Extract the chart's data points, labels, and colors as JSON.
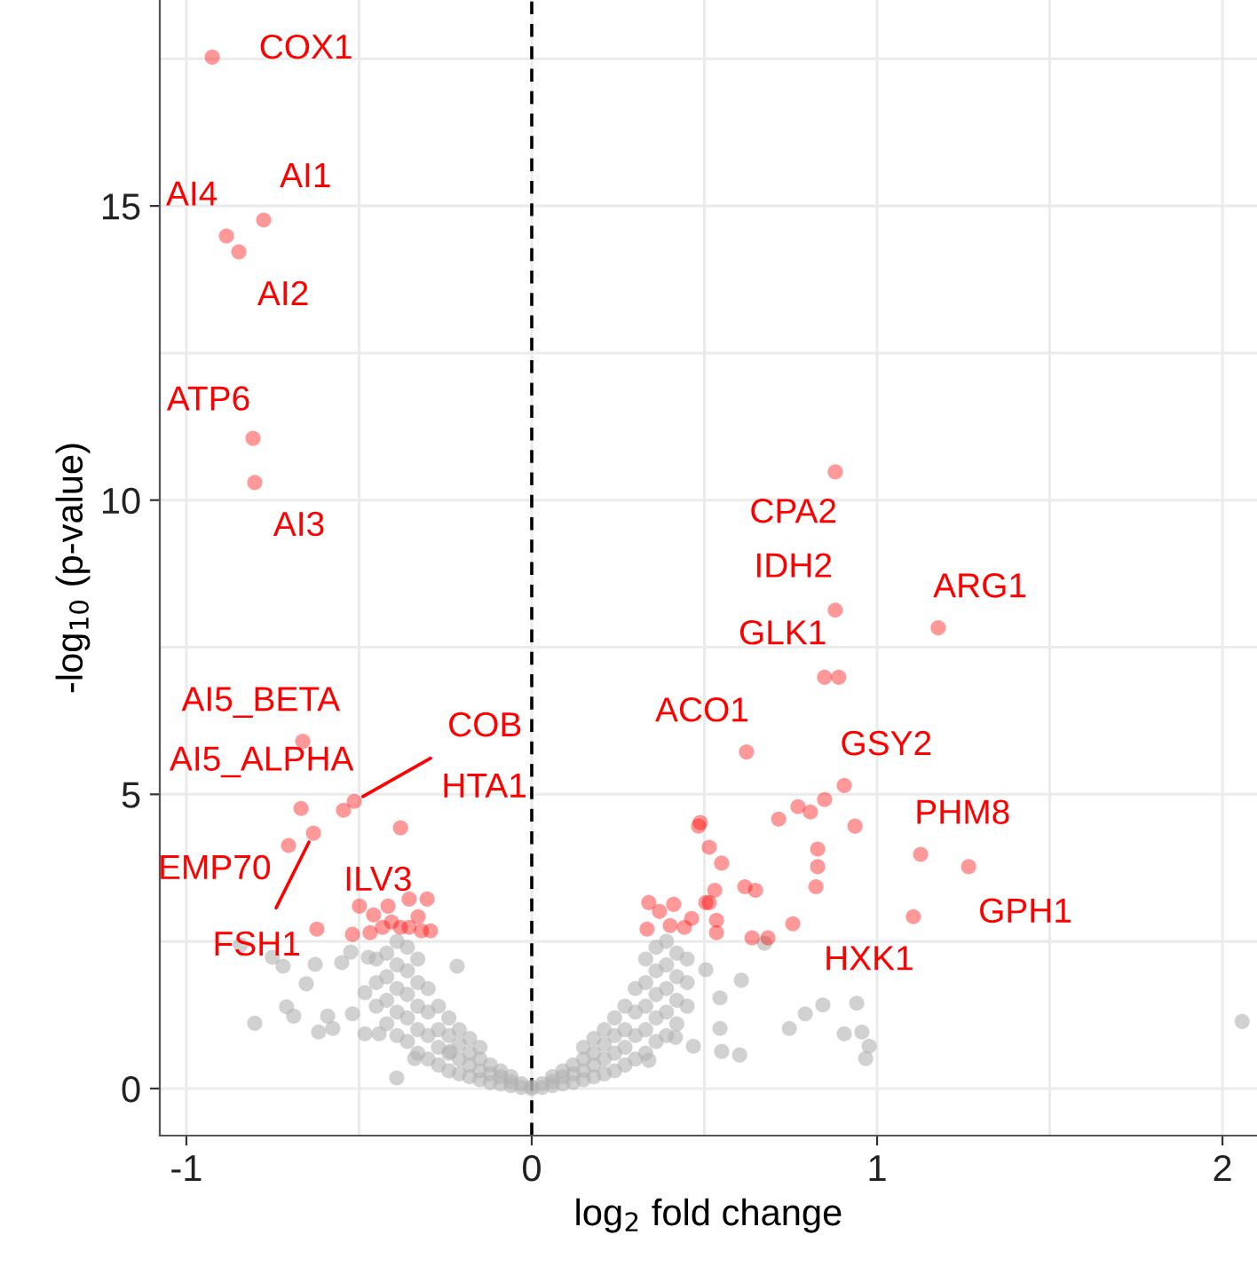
{
  "chart_data": {
    "type": "scatter",
    "xlabel": "log$_{2}$ fold change",
    "ylabel": "-log$_{10}$ (p-value)",
    "xlim": [
      -1.077,
      2.1
    ],
    "ylim": [
      -0.8,
      18.5
    ],
    "xticks": [
      -1,
      {
        "value": -0.5,
        "label": null
      },
      0,
      {
        "value": 0.5,
        "label": null
      },
      1,
      {
        "value": 1.5,
        "label": null
      },
      2
    ],
    "yticks": [
      0,
      {
        "value": 2.5,
        "label": null
      },
      5,
      {
        "value": 7.5,
        "label": null
      },
      10,
      {
        "value": 12.5,
        "label": null
      },
      15,
      {
        "value": 17.5,
        "label": null
      }
    ],
    "grid": true,
    "legend": false,
    "marker": "circle",
    "ref_lines": [
      {
        "axis": "x",
        "value": 0,
        "color": "#000000",
        "line_style": "dashed"
      }
    ],
    "series": [
      {
        "color": "#b3b3b3",
        "x": [
          -0.843,
          -0.751,
          -0.72,
          -0.627,
          -0.653,
          -0.802,
          -0.71,
          -0.689,
          -0.617,
          -0.576,
          -0.591,
          -0.55,
          -0.524,
          -0.473,
          -0.519,
          -0.483,
          -0.391,
          -0.442,
          -0.483,
          -0.339,
          -0.216,
          -0.236,
          -0.45,
          -0.45,
          -0.45,
          -0.42,
          -0.42,
          -0.42,
          -0.42,
          -0.39,
          -0.39,
          -0.39,
          -0.39,
          -0.39,
          -0.36,
          -0.36,
          -0.36,
          -0.36,
          -0.36,
          -0.33,
          -0.33,
          -0.33,
          -0.33,
          -0.33,
          -0.3,
          -0.3,
          -0.3,
          -0.3,
          -0.27,
          -0.27,
          -0.27,
          -0.27,
          -0.24,
          -0.24,
          -0.24,
          -0.24,
          -0.21,
          -0.21,
          -0.21,
          -0.21,
          -0.18,
          -0.18,
          -0.18,
          -0.18,
          -0.15,
          -0.15,
          -0.15,
          -0.15,
          -0.12,
          -0.12,
          -0.12,
          -0.09,
          -0.09,
          -0.09,
          -0.06,
          -0.06,
          -0.06,
          -0.03,
          -0.03,
          0,
          0,
          0.03,
          0.03,
          0.06,
          0.06,
          0.06,
          0.09,
          0.09,
          0.09,
          0.12,
          0.12,
          0.12,
          0.15,
          0.15,
          0.15,
          0.15,
          0.18,
          0.18,
          0.18,
          0.18,
          0.21,
          0.21,
          0.21,
          0.21,
          0.24,
          0.24,
          0.24,
          0.24,
          0.27,
          0.27,
          0.27,
          0.27,
          0.3,
          0.3,
          0.3,
          0.3,
          0.33,
          0.33,
          0.33,
          0.33,
          0.33,
          0.36,
          0.36,
          0.36,
          0.36,
          0.36,
          0.39,
          0.39,
          0.39,
          0.39,
          0.39,
          0.42,
          0.42,
          0.42,
          0.42,
          0.45,
          0.45,
          0.45,
          0.545,
          0.602,
          0.55,
          0.746,
          0.792,
          0.843,
          0.941,
          0.905,
          0.956,
          0.977,
          0.967,
          0.468,
          0.416,
          0.339,
          0.607,
          0.545,
          0.504,
          0.674,
          2.057
        ],
        "values": [
          2.44,
          2.23,
          2.08,
          2.11,
          1.78,
          1.11,
          1.39,
          1.23,
          0.96,
          1.02,
          1.23,
          2.14,
          2.32,
          2.23,
          1.27,
          1.63,
          0.18,
          0.93,
          0.93,
          0.51,
          2.08,
          0.63,
          1.4,
          1.8,
          2.2,
          1.1,
          1.5,
          1.9,
          2.3,
          0.9,
          1.3,
          1.7,
          2.1,
          2.5,
          0.8,
          1.2,
          1.6,
          2.0,
          2.4,
          0.6,
          1.0,
          1.4,
          1.8,
          2.2,
          0.5,
          0.9,
          1.3,
          1.7,
          0.4,
          0.7,
          1.0,
          1.4,
          0.3,
          0.6,
          0.9,
          1.2,
          0.25,
          0.5,
          0.75,
          1.0,
          0.2,
          0.4,
          0.6,
          0.85,
          0.15,
          0.3,
          0.5,
          0.7,
          0.1,
          0.25,
          0.4,
          0.08,
          0.2,
          0.3,
          0.05,
          0.12,
          0.2,
          0.02,
          0.08,
          0,
          0.03,
          0.02,
          0.08,
          0.05,
          0.12,
          0.2,
          0.08,
          0.2,
          0.3,
          0.1,
          0.25,
          0.4,
          0.15,
          0.3,
          0.5,
          0.7,
          0.2,
          0.4,
          0.6,
          0.85,
          0.25,
          0.5,
          0.75,
          1.0,
          0.3,
          0.6,
          0.9,
          1.2,
          0.4,
          0.7,
          1.0,
          1.4,
          0.5,
          0.9,
          1.3,
          1.7,
          0.6,
          1.0,
          1.4,
          1.8,
          2.2,
          0.8,
          1.2,
          1.6,
          2.0,
          2.4,
          0.9,
          1.3,
          1.7,
          2.1,
          2.5,
          1.1,
          1.5,
          1.9,
          2.3,
          1.4,
          1.8,
          2.2,
          1.02,
          0.57,
          0.63,
          1.02,
          1.27,
          1.42,
          1.45,
          0.93,
          0.96,
          0.72,
          0.51,
          0.72,
          0.87,
          0.48,
          1.84,
          1.54,
          2.02,
          2.47,
          1.14
        ]
      },
      {
        "color": "#ff0000",
        "x": [
          -0.925,
          -0.776,
          -0.884,
          -0.848,
          -0.807,
          -0.802,
          -0.663,
          -0.668,
          -0.514,
          -0.545,
          -0.38,
          -0.704,
          -0.632,
          -0.622,
          -0.499,
          -0.458,
          -0.416,
          -0.355,
          -0.303,
          -0.329,
          -0.519,
          -0.468,
          -0.406,
          -0.38,
          -0.355,
          -0.293,
          -0.319,
          -0.432,
          0.879,
          0.879,
          1.177,
          0.848,
          0.889,
          0.622,
          0.905,
          0.848,
          0.807,
          0.771,
          0.715,
          0.936,
          0.488,
          0.483,
          0.514,
          0.55,
          0.828,
          0.828,
          0.823,
          0.617,
          0.648,
          0.53,
          0.514,
          0.756,
          0.638,
          0.684,
          1.126,
          1.265,
          1.105,
          0.339,
          0.37,
          0.411,
          0.334,
          0.401,
          0.463,
          0.504,
          0.535,
          0.442,
          0.535
        ],
        "values": [
          17.53,
          14.76,
          14.49,
          14.22,
          11.05,
          10.3,
          5.9,
          4.76,
          4.88,
          4.73,
          4.43,
          4.13,
          4.34,
          2.71,
          3.1,
          2.95,
          3.1,
          3.22,
          3.22,
          2.92,
          2.62,
          2.65,
          2.83,
          2.74,
          2.74,
          2.68,
          2.68,
          2.74,
          10.48,
          8.13,
          7.83,
          6.99,
          6.99,
          5.72,
          5.15,
          4.91,
          4.7,
          4.79,
          4.58,
          4.46,
          4.52,
          4.46,
          4.1,
          3.83,
          4.07,
          3.77,
          3.43,
          3.43,
          3.37,
          3.37,
          3.16,
          2.8,
          2.56,
          2.56,
          3.98,
          3.77,
          2.92,
          3.16,
          3.01,
          3.13,
          2.71,
          2.77,
          2.89,
          3.16,
          2.86,
          2.74,
          2.65
        ]
      }
    ],
    "annotations": [
      {
        "text": "COX1",
        "x": -0.925,
        "y": 17.53
      },
      {
        "text": "AI1",
        "x": -0.776,
        "y": 14.76
      },
      {
        "text": "AI4",
        "x": -0.884,
        "y": 14.49
      },
      {
        "text": "AI2",
        "x": -0.848,
        "y": 14.22
      },
      {
        "text": "ATP6",
        "x": -0.807,
        "y": 11.05
      },
      {
        "text": "AI3",
        "x": -0.802,
        "y": 10.3
      },
      {
        "text": "CPA2",
        "x": 0.879,
        "y": 10.48
      },
      {
        "text": "IDH2",
        "x": 0.879,
        "y": 8.13
      },
      {
        "text": "ARG1",
        "x": 1.177,
        "y": 7.83
      },
      {
        "text": "GLK1",
        "x": 0.848,
        "y": 6.99
      },
      {
        "text": "ACO1",
        "x": 0.622,
        "y": 5.72
      },
      {
        "text": "GSY2",
        "x": 0.905,
        "y": 5.15
      },
      {
        "text": "PHM8",
        "x": 1.126,
        "y": 3.98
      },
      {
        "text": "GPH1",
        "x": 1.265,
        "y": 3.77
      },
      {
        "text": "HXK1",
        "x": 1.105,
        "y": 2.92
      },
      {
        "text": "AI5_BETA",
        "x": -0.663,
        "y": 5.9
      },
      {
        "text": "AI5_ALPHA",
        "x": -0.668,
        "y": 4.76
      },
      {
        "text": "COB",
        "x": -0.514,
        "y": 4.88
      },
      {
        "text": "HTA1",
        "x": -0.38,
        "y": 4.43
      },
      {
        "text": "ILV3",
        "x": -0.545,
        "y": 4.73
      },
      {
        "text": "EMP70",
        "x": -0.704,
        "y": 4.13
      },
      {
        "text": "FSH1",
        "x": -0.632,
        "y": 4.34
      }
    ]
  }
}
